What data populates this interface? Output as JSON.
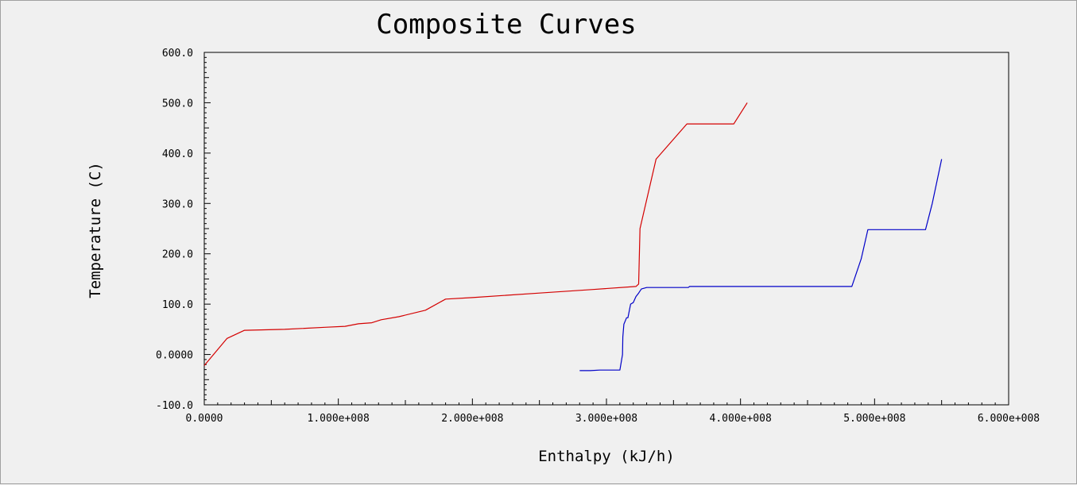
{
  "chart_data": {
    "type": "line",
    "title": "Composite Curves",
    "xlabel": "Enthalpy (kJ/h)",
    "ylabel": "Temperature (C)",
    "xlim": [
      0,
      600000000
    ],
    "ylim": [
      -100,
      600
    ],
    "grid": false,
    "x_ticks": [
      {
        "value": 0,
        "label": "0.0000"
      },
      {
        "value": 100000000,
        "label": "1.000e+008"
      },
      {
        "value": 200000000,
        "label": "2.000e+008"
      },
      {
        "value": 300000000,
        "label": "3.000e+008"
      },
      {
        "value": 400000000,
        "label": "4.000e+008"
      },
      {
        "value": 500000000,
        "label": "5.000e+008"
      },
      {
        "value": 600000000,
        "label": "6.000e+008"
      }
    ],
    "y_ticks": [
      {
        "value": -100,
        "label": "-100.0"
      },
      {
        "value": 0,
        "label": "0.0000"
      },
      {
        "value": 100,
        "label": "100.0"
      },
      {
        "value": 200,
        "label": "200.0"
      },
      {
        "value": 300,
        "label": "300.0"
      },
      {
        "value": 400,
        "label": "400.0"
      },
      {
        "value": 500,
        "label": "500.0"
      },
      {
        "value": 600,
        "label": "600.0"
      }
    ],
    "series": [
      {
        "color": "#d40000",
        "x": [
          0,
          17000000,
          30000000,
          60000000,
          90000000,
          105000000,
          115000000,
          125000000,
          132000000,
          145000000,
          165000000,
          180000000,
          200000000,
          250000000,
          290000000,
          322000000,
          324000000,
          325000000,
          337000000,
          360000000,
          380000000,
          395000000,
          405000000
        ],
        "y": [
          -22,
          32,
          48,
          50,
          54,
          56,
          61,
          63,
          69,
          75,
          88,
          110,
          113,
          122,
          129,
          135,
          140,
          250,
          388,
          458,
          458,
          458,
          500
        ]
      },
      {
        "color": "#0000c8",
        "x": [
          280000000,
          288000000,
          295000000,
          310000000,
          312000000,
          312200000,
          313000000,
          315000000,
          316000000,
          318000000,
          320000000,
          322000000,
          324000000,
          326000000,
          330000000,
          345000000,
          361000000,
          362000000,
          380000000,
          420000000,
          470000000,
          483000000,
          490000000,
          495000000,
          505000000,
          520000000,
          535000000,
          538000000,
          543000000,
          550000000
        ],
        "y": [
          -32,
          -32,
          -31,
          -31,
          0,
          35,
          60,
          73,
          73,
          100,
          103,
          115,
          122,
          130,
          133,
          133,
          133,
          135,
          135,
          135,
          135,
          135,
          190,
          248,
          248,
          248,
          248,
          248,
          300,
          388
        ]
      }
    ]
  }
}
